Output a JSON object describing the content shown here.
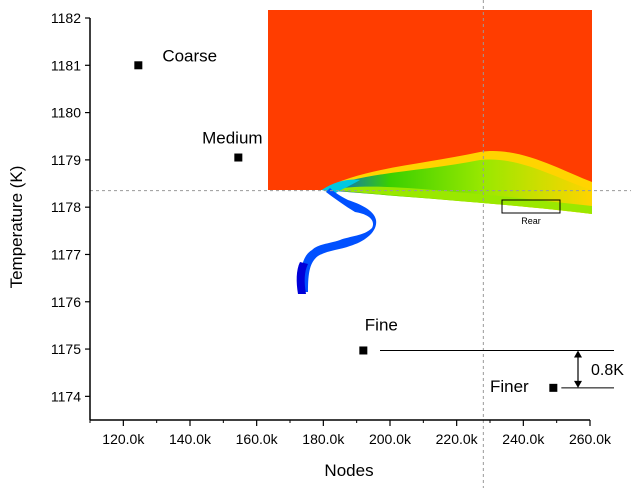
{
  "chart_data": {
    "type": "scatter",
    "xlabel": "Nodes",
    "ylabel": "Temperature (K)",
    "xlim": [
      110000,
      260000
    ],
    "ylim": [
      1173.5,
      1182
    ],
    "x_ticks": [
      {
        "v": 120000,
        "label": "120.0k"
      },
      {
        "v": 140000,
        "label": "140.0k"
      },
      {
        "v": 160000,
        "label": "160.0k"
      },
      {
        "v": 180000,
        "label": "180.0k"
      },
      {
        "v": 200000,
        "label": "200.0k"
      },
      {
        "v": 220000,
        "label": "220.0k"
      },
      {
        "v": 240000,
        "label": "240.0k"
      },
      {
        "v": 260000,
        "label": "260.0k"
      }
    ],
    "y_ticks": [
      {
        "v": 1174,
        "label": "1174"
      },
      {
        "v": 1175,
        "label": "1175"
      },
      {
        "v": 1176,
        "label": "1176"
      },
      {
        "v": 1177,
        "label": "1177"
      },
      {
        "v": 1178,
        "label": "1178"
      },
      {
        "v": 1179,
        "label": "1179"
      },
      {
        "v": 1180,
        "label": "1180"
      },
      {
        "v": 1181,
        "label": "1181"
      },
      {
        "v": 1182,
        "label": "1182"
      }
    ],
    "points": [
      {
        "label": "Coarse",
        "x": 124500,
        "y": 1181.0
      },
      {
        "label": "Medium",
        "x": 154500,
        "y": 1179.05
      },
      {
        "label": "Fine",
        "x": 192000,
        "y": 1174.97
      },
      {
        "label": "Finer",
        "x": 249000,
        "y": 1174.18
      }
    ],
    "reference_lines": {
      "x": 228000,
      "y": 1178.35
    },
    "annotation": {
      "text": "0.8K",
      "y_top": 1174.97,
      "y_bottom": 1174.18
    },
    "inset_label": "Rear",
    "inset_colors": [
      "#ff3d00",
      "#ffd400",
      "#e8f000",
      "#9ae800",
      "#3ad000",
      "#00c8e0",
      "#0050ff",
      "#0000d8"
    ]
  }
}
